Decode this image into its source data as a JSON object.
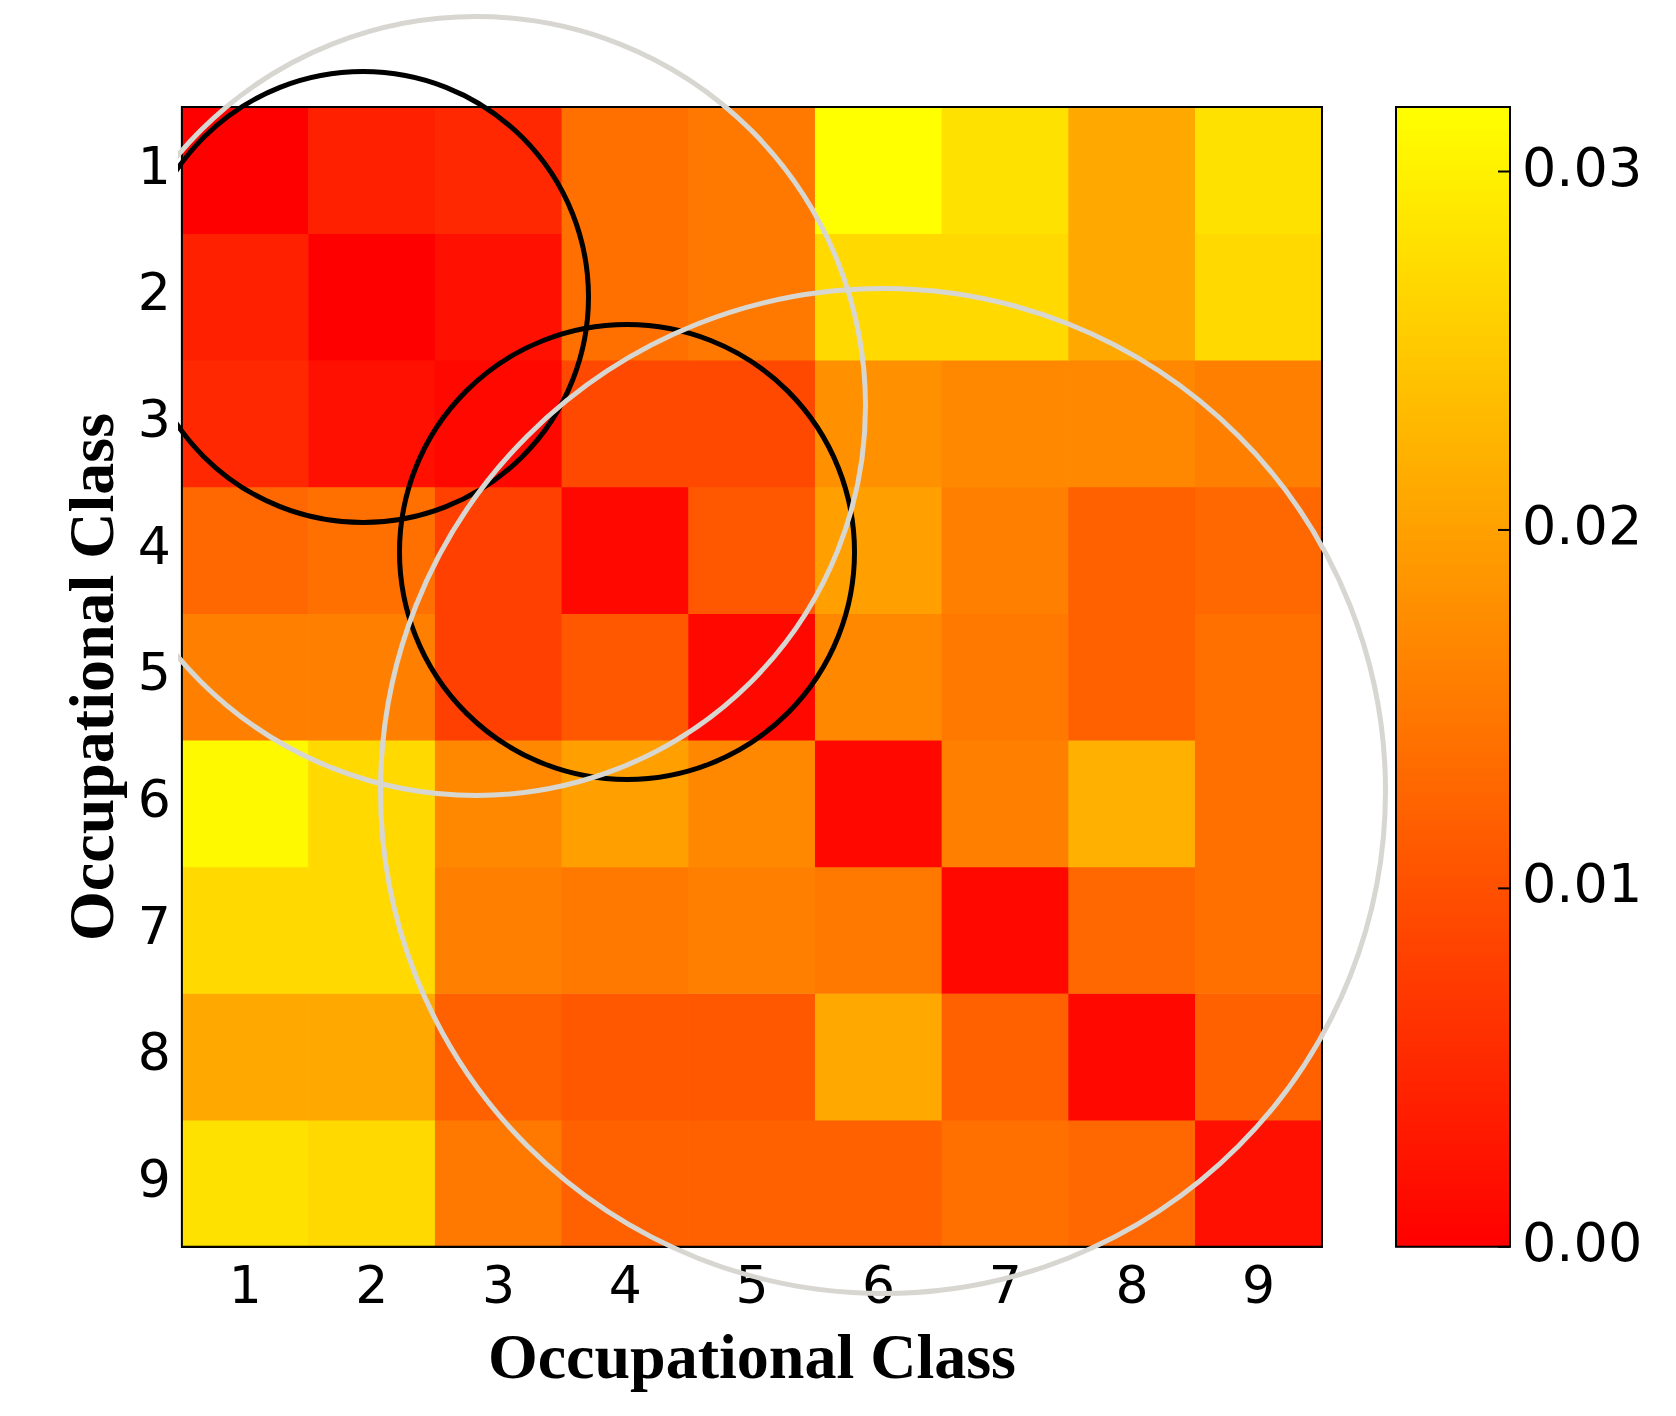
{
  "chart_data": {
    "type": "heatmap",
    "xlabel": "Occupational Class",
    "ylabel": "Occupational Class",
    "categories": [
      "1",
      "2",
      "3",
      "4",
      "5",
      "6",
      "7",
      "8",
      "9"
    ],
    "y_categories": [
      "1",
      "2",
      "3",
      "4",
      "5",
      "6",
      "7",
      "8",
      "9"
    ],
    "cells": [
      [
        0.0,
        0.004,
        0.005,
        0.014,
        0.015,
        0.032,
        0.028,
        0.021,
        0.028
      ],
      [
        0.004,
        0.0,
        0.002,
        0.014,
        0.015,
        0.027,
        0.027,
        0.021,
        0.027
      ],
      [
        0.005,
        0.002,
        0.001,
        0.009,
        0.009,
        0.018,
        0.017,
        0.017,
        0.016
      ],
      [
        0.013,
        0.014,
        0.008,
        0.001,
        0.011,
        0.02,
        0.016,
        0.012,
        0.013
      ],
      [
        0.016,
        0.016,
        0.008,
        0.011,
        0.001,
        0.017,
        0.015,
        0.012,
        0.014
      ],
      [
        0.031,
        0.027,
        0.017,
        0.02,
        0.017,
        0.001,
        0.016,
        0.022,
        0.014
      ],
      [
        0.027,
        0.027,
        0.016,
        0.015,
        0.016,
        0.015,
        0.001,
        0.013,
        0.014
      ],
      [
        0.021,
        0.021,
        0.012,
        0.011,
        0.011,
        0.021,
        0.012,
        0.001,
        0.012
      ],
      [
        0.028,
        0.027,
        0.015,
        0.012,
        0.012,
        0.012,
        0.014,
        0.013,
        0.002
      ]
    ],
    "clim": [
      0,
      0.0318
    ],
    "cticks": [
      {
        "value": 0,
        "label": "0.00"
      },
      0.01,
      0.02,
      0.03
    ]
  }
}
